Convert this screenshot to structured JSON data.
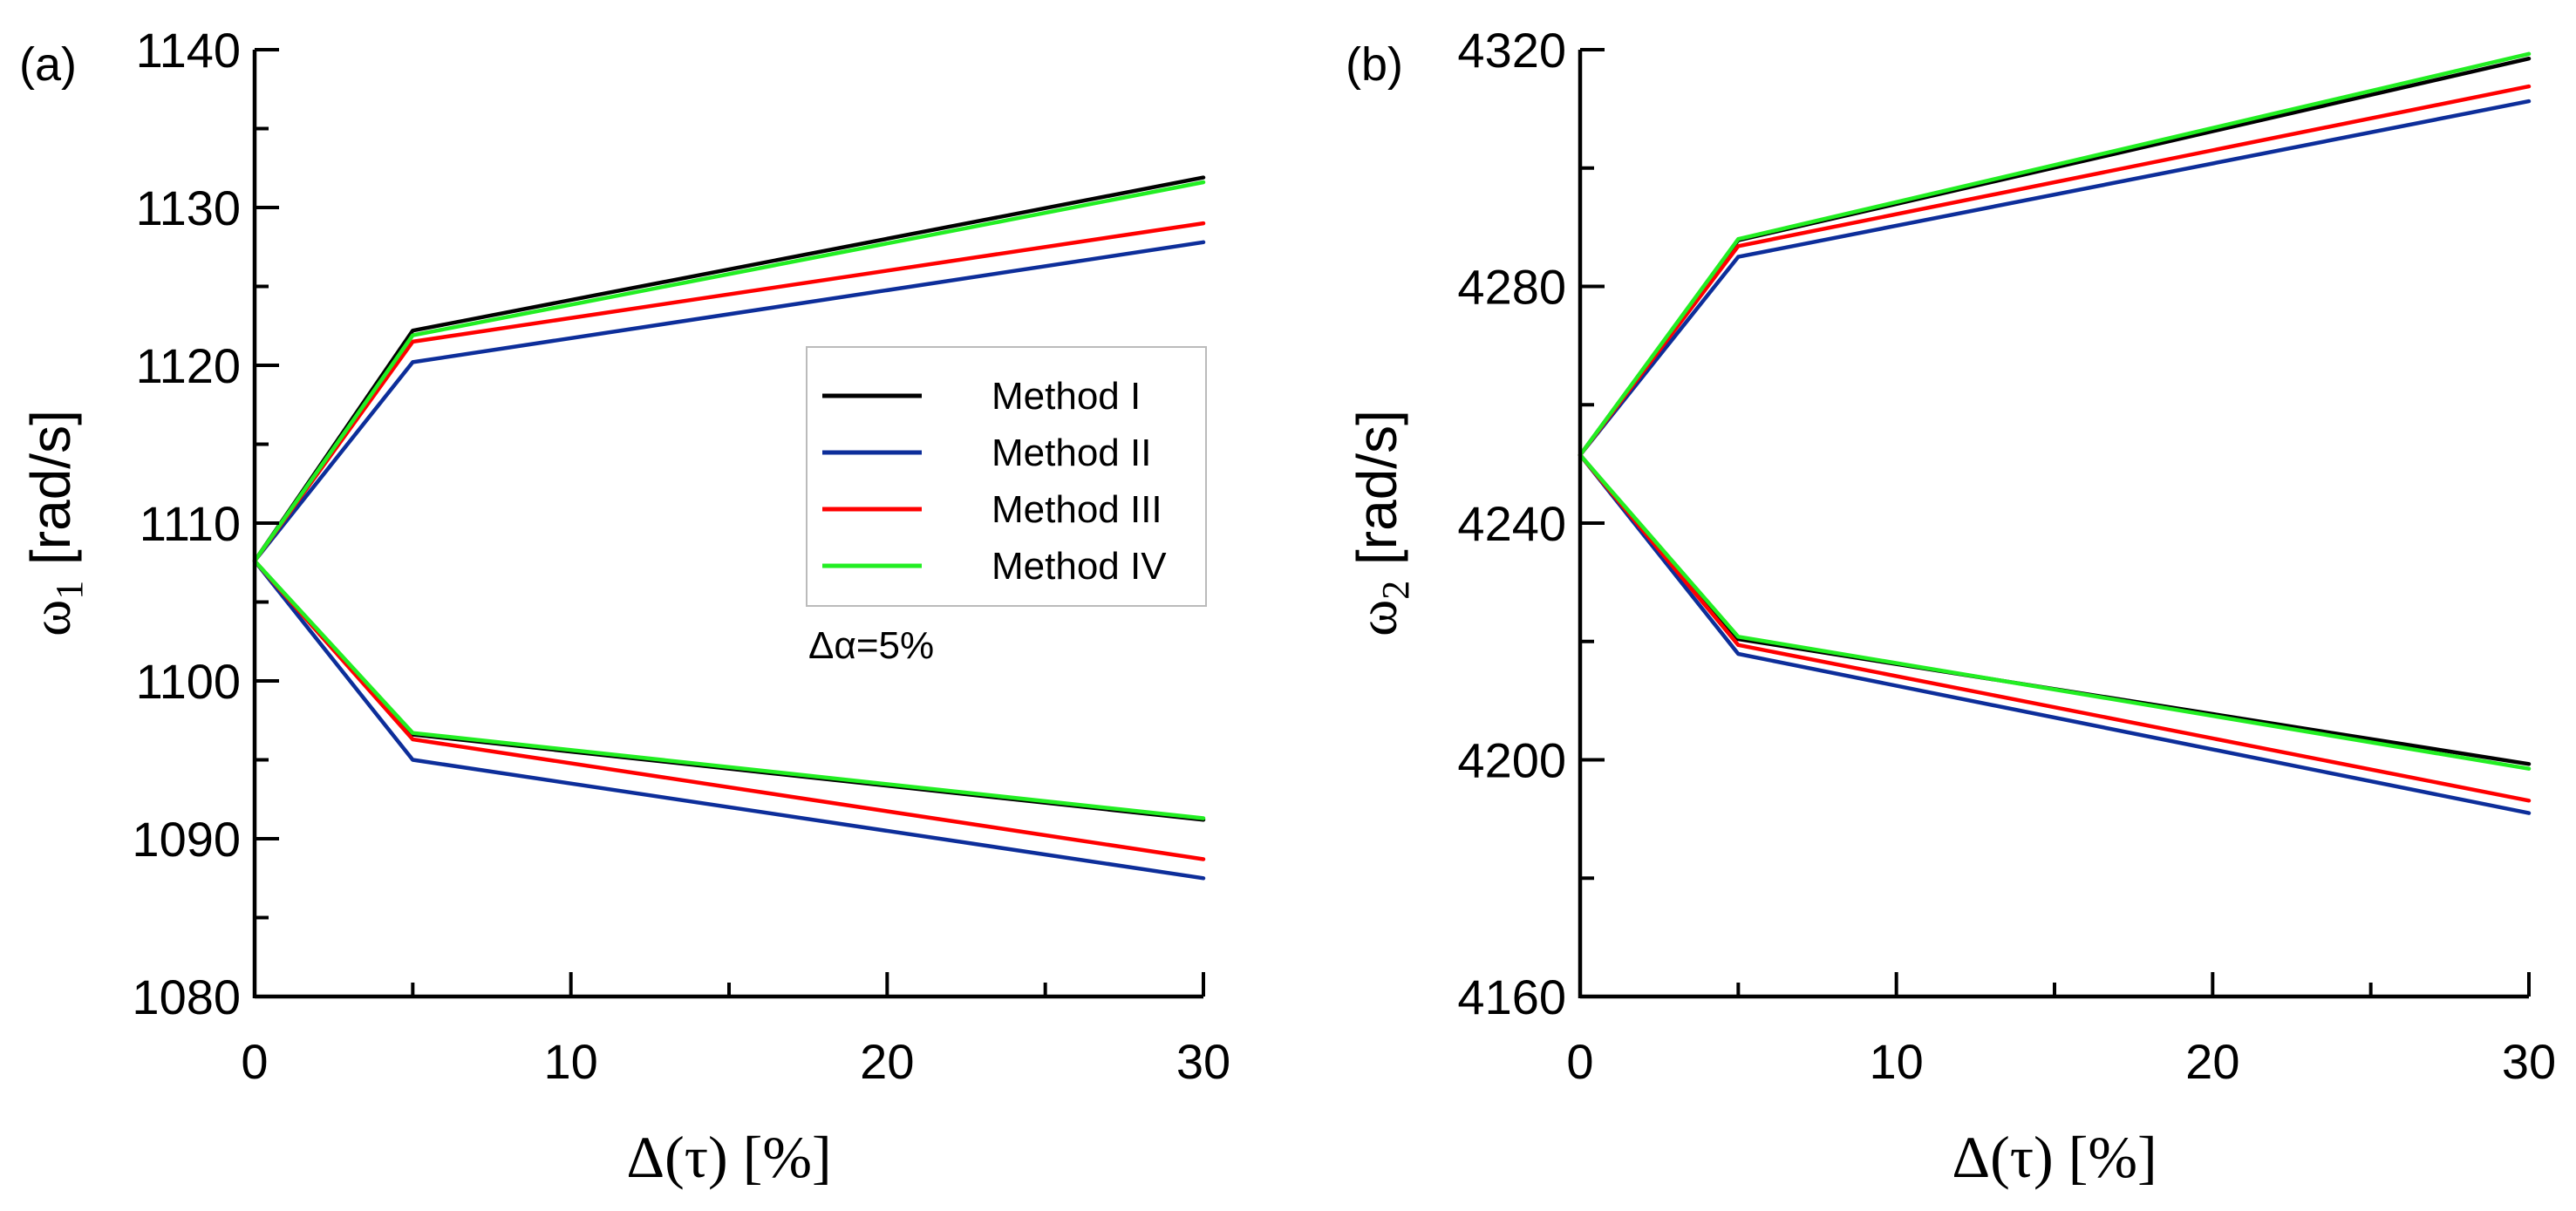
{
  "chart_data": [
    {
      "type": "line",
      "panel_label": "(a)",
      "xlabel": "Δ(τ) [%]",
      "ylabel_symbol": "ω",
      "ylabel_sub": "1",
      "ylabel_unit": " [rad/s]",
      "xlim": [
        0,
        30
      ],
      "ylim": [
        1080,
        1140
      ],
      "xticks": [
        0,
        10,
        20,
        30
      ],
      "xticks_minor": [
        5,
        15,
        25
      ],
      "yticks": [
        1080,
        1090,
        1100,
        1110,
        1120,
        1130,
        1140
      ],
      "yticks_minor": [
        1085,
        1095,
        1105,
        1115,
        1125,
        1135
      ],
      "annotation": "Δα=5%",
      "legend": {
        "placement": "center-right",
        "entries": [
          "Method I",
          "Method II",
          "Method III",
          "Method IV"
        ]
      },
      "series": [
        {
          "name": "Method I",
          "color": "#000000",
          "x": [
            0,
            5,
            30
          ],
          "upper": [
            1107.6,
            1122.2,
            1131.9
          ],
          "lower": [
            1107.6,
            1096.6,
            1091.2
          ]
        },
        {
          "name": "Method II",
          "color": "#0d2e9a",
          "x": [
            0,
            5,
            30
          ],
          "upper": [
            1107.6,
            1120.2,
            1127.8
          ],
          "lower": [
            1107.6,
            1095.0,
            1087.5
          ]
        },
        {
          "name": "Method III",
          "color": "#ff0000",
          "x": [
            0,
            5,
            30
          ],
          "upper": [
            1107.6,
            1121.5,
            1129.0
          ],
          "lower": [
            1107.6,
            1096.3,
            1088.7
          ]
        },
        {
          "name": "Method IV",
          "color": "#22ee22",
          "x": [
            0,
            5,
            30
          ],
          "upper": [
            1107.6,
            1121.9,
            1131.6
          ],
          "lower": [
            1107.6,
            1096.7,
            1091.3
          ]
        }
      ]
    },
    {
      "type": "line",
      "panel_label": "(b)",
      "xlabel": "Δ(τ) [%]",
      "ylabel_symbol": "ω",
      "ylabel_sub": "2",
      "ylabel_unit": " [rad/s]",
      "xlim": [
        0,
        30
      ],
      "ylim": [
        4160,
        4320
      ],
      "xticks": [
        0,
        10,
        20,
        30
      ],
      "xticks_minor": [
        5,
        15,
        25
      ],
      "yticks": [
        4160,
        4200,
        4240,
        4280,
        4320
      ],
      "yticks_minor": [
        4180,
        4220,
        4260,
        4300
      ],
      "series": [
        {
          "name": "Method I",
          "color": "#000000",
          "x": [
            0,
            5,
            30
          ],
          "upper": [
            4251.5,
            4287.8,
            4318.5
          ],
          "lower": [
            4251.5,
            4220.4,
            4199.3
          ]
        },
        {
          "name": "Method II",
          "color": "#0d2e9a",
          "x": [
            0,
            5,
            30
          ],
          "upper": [
            4251.5,
            4285.0,
            4311.3
          ],
          "lower": [
            4251.5,
            4217.9,
            4191.0
          ]
        },
        {
          "name": "Method III",
          "color": "#ff0000",
          "x": [
            0,
            5,
            30
          ],
          "upper": [
            4251.5,
            4286.8,
            4313.8
          ],
          "lower": [
            4251.5,
            4219.4,
            4193.1
          ]
        },
        {
          "name": "Method IV",
          "color": "#22ee22",
          "x": [
            0,
            5,
            30
          ],
          "upper": [
            4251.5,
            4288.0,
            4319.3
          ],
          "lower": [
            4251.5,
            4220.8,
            4198.5
          ]
        }
      ]
    }
  ]
}
